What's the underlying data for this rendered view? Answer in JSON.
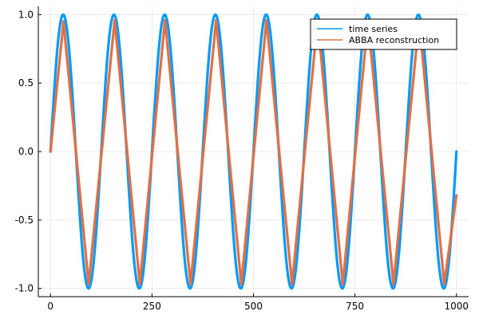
{
  "chart_data": {
    "type": "line",
    "title": "",
    "xlabel": "",
    "ylabel": "",
    "xlim": [
      0,
      1000
    ],
    "ylim": [
      -1.0,
      1.0
    ],
    "x_ticks": [
      0,
      250,
      500,
      750,
      1000
    ],
    "y_ticks": [
      -1.0,
      -0.5,
      0.0,
      0.5,
      1.0
    ],
    "x_tick_labels": [
      "0",
      "250",
      "500",
      "750",
      "1000"
    ],
    "y_tick_labels": [
      "-1.0",
      "-0.5",
      "0.0",
      "0.5",
      "1.0"
    ],
    "grid": true,
    "legend_position": "top-right",
    "series": [
      {
        "name": "time series",
        "color": "#009AFA",
        "function": "sin(2*pi*x/125)",
        "x_range": [
          0,
          1000
        ],
        "period": 125
      },
      {
        "name": "ABBA reconstruction",
        "color": "#E26F46",
        "x": [
          0,
          32,
          94,
          158,
          220,
          282,
          345,
          408,
          470,
          532,
          595,
          658,
          720,
          782,
          845,
          908,
          970,
          1000
        ],
        "y": [
          0.0,
          0.95,
          -0.97,
          0.96,
          -0.97,
          0.96,
          -0.97,
          0.96,
          -0.97,
          0.96,
          -0.97,
          0.96,
          -0.97,
          0.96,
          -0.97,
          0.96,
          -0.97,
          -0.32
        ]
      }
    ]
  }
}
